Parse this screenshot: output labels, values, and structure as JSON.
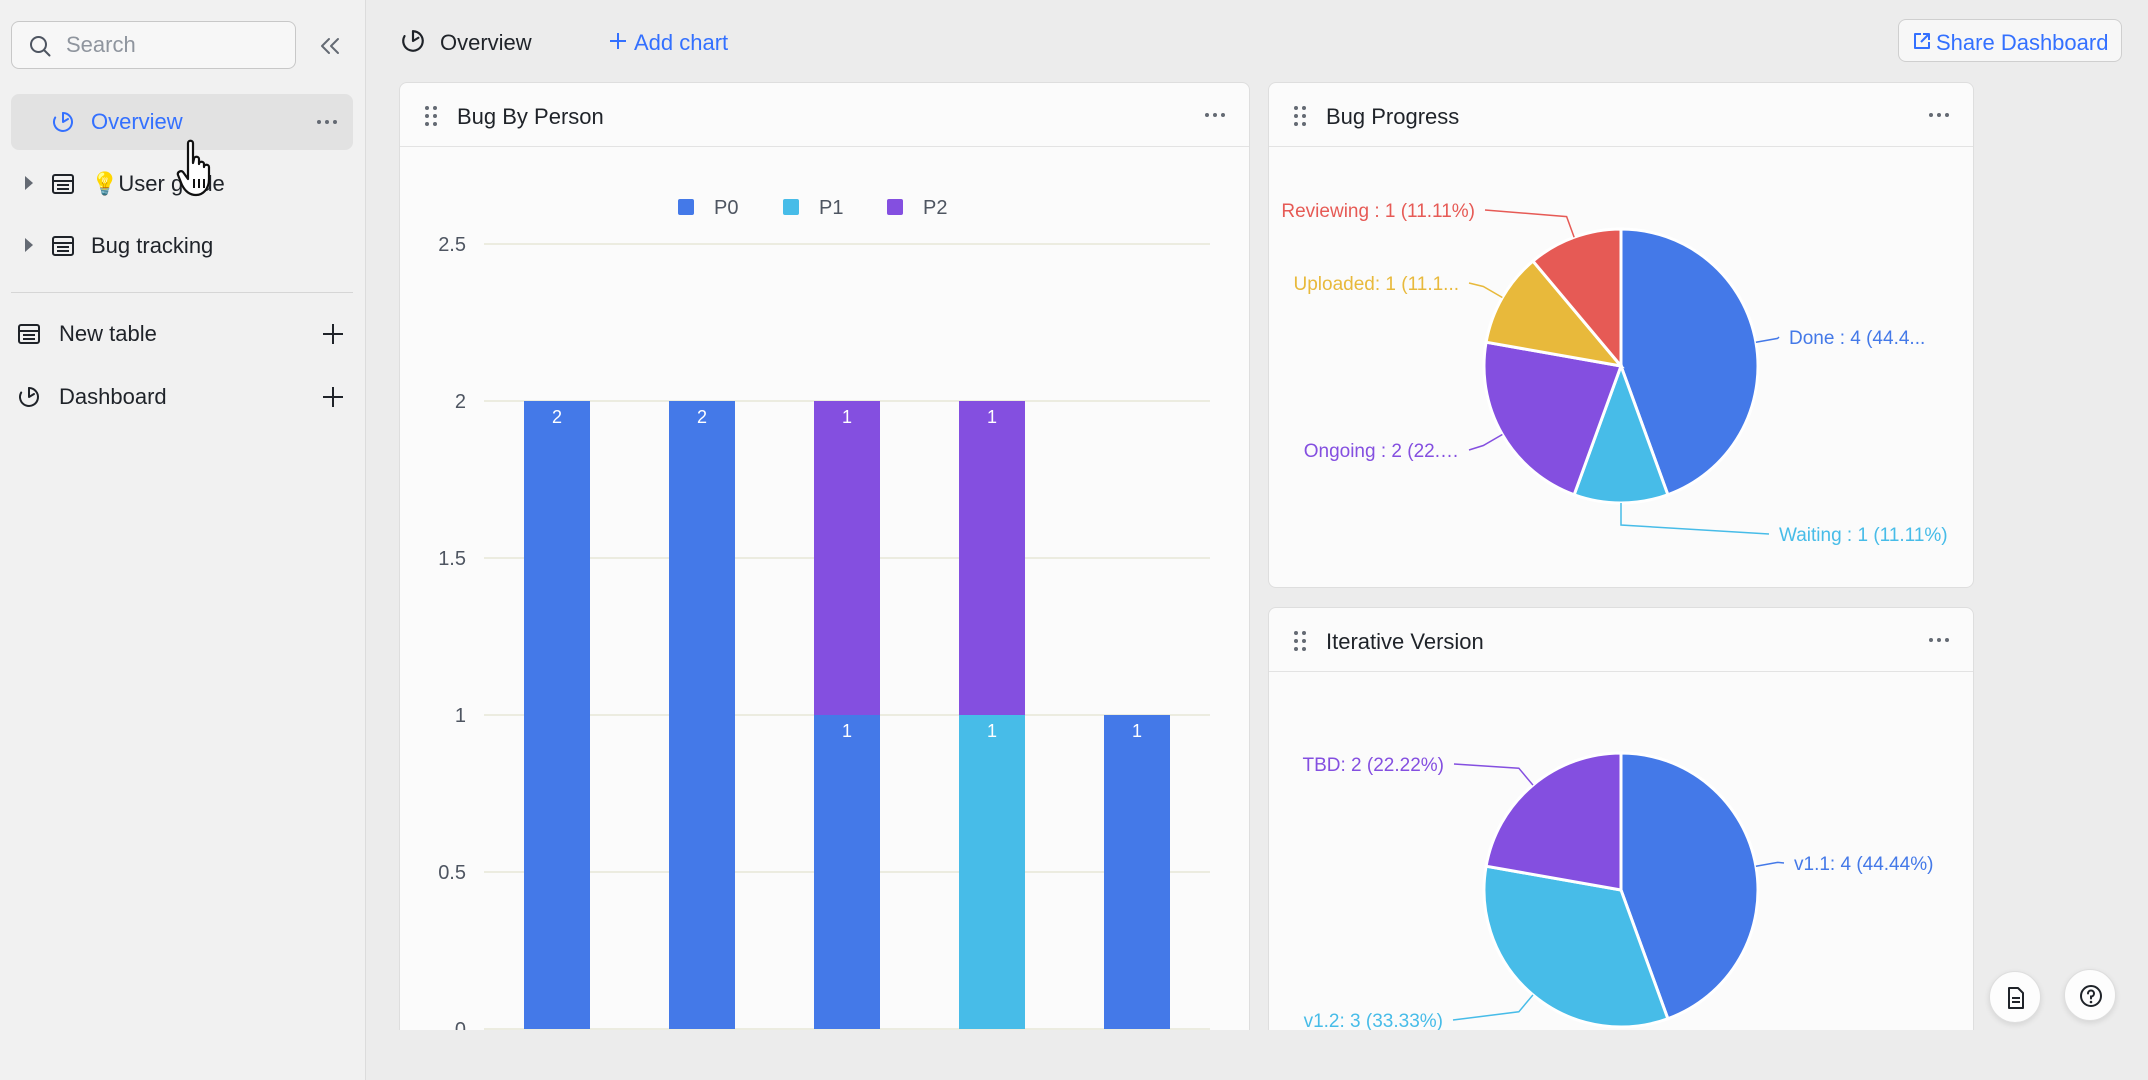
{
  "search": {
    "placeholder": "Search"
  },
  "sidebar": {
    "items": [
      {
        "label": "Overview",
        "icon": "dashboard-icon"
      },
      {
        "label": "💡User guide",
        "icon": "table-icon"
      },
      {
        "label": "Bug tracking",
        "icon": "table-icon"
      }
    ],
    "new_table": "New table",
    "dashboard": "Dashboard"
  },
  "topbar": {
    "tab": "Overview",
    "add_chart": "Add chart",
    "share": "Share Dashboard"
  },
  "colors": {
    "accent": "#3370ff",
    "P0": "#4479e8",
    "P1": "#47bce8",
    "P2": "#844fe0",
    "done": "#4479e8",
    "waiting": "#47bce8",
    "ongoing": "#844fe0",
    "uploaded": "#e8b93b",
    "reviewing": "#e65a55"
  },
  "cards": {
    "bug_by_person": "Bug By Person",
    "bug_progress": "Bug Progress",
    "iterative_version": "Iterative Version"
  },
  "chart_data": [
    {
      "type": "bar",
      "title": "Bug By Person",
      "stacked": true,
      "categories": [
        "",
        "",
        "",
        "",
        ""
      ],
      "series": [
        {
          "name": "P0",
          "values": [
            2,
            2,
            1,
            0,
            1
          ]
        },
        {
          "name": "P1",
          "values": [
            0,
            0,
            0,
            1,
            0
          ]
        },
        {
          "name": "P2",
          "values": [
            0,
            0,
            1,
            1,
            0
          ]
        }
      ],
      "data_labels": [
        {
          "bar": 0,
          "series": "P0",
          "text": "2"
        },
        {
          "bar": 1,
          "series": "P0",
          "text": "2"
        },
        {
          "bar": 2,
          "series": "P0",
          "text": "1"
        },
        {
          "bar": 2,
          "series": "P2",
          "text": "1"
        },
        {
          "bar": 3,
          "series": "P1",
          "text": "1"
        },
        {
          "bar": 3,
          "series": "P2",
          "text": "1"
        },
        {
          "bar": 4,
          "series": "P0",
          "text": "1"
        }
      ],
      "yticks": [
        "0",
        "0.5",
        "1",
        "1.5",
        "2",
        "2.5"
      ],
      "ylim": [
        0,
        2.5
      ],
      "legend": "top-center",
      "grid": true
    },
    {
      "type": "pie",
      "title": "Bug Progress",
      "slices": [
        {
          "name": "Done",
          "value": 4,
          "label": "Done : 4 (44.4...",
          "color": "#4479e8"
        },
        {
          "name": "Waiting",
          "value": 1,
          "label": "Waiting : 1 (11.11%)",
          "color": "#47bce8"
        },
        {
          "name": "Ongoing",
          "value": 2,
          "label": "Ongoing : 2 (22.…",
          "color": "#844fe0"
        },
        {
          "name": "Uploaded",
          "value": 1,
          "label": "Uploaded: 1 (11.1...",
          "color": "#e8b93b"
        },
        {
          "name": "Reviewing",
          "value": 1,
          "label": "Reviewing : 1 (11.11%)",
          "color": "#e65a55"
        }
      ]
    },
    {
      "type": "pie",
      "title": "Iterative Version",
      "slices": [
        {
          "name": "v1.1",
          "value": 4,
          "label": "v1.1: 4 (44.44%)",
          "color": "#4479e8"
        },
        {
          "name": "v1.2",
          "value": 3,
          "label": "v1.2: 3 (33.33%)",
          "color": "#47bce8"
        },
        {
          "name": "TBD",
          "value": 2,
          "label": "TBD: 2 (22.22%)",
          "color": "#844fe0"
        }
      ]
    }
  ]
}
